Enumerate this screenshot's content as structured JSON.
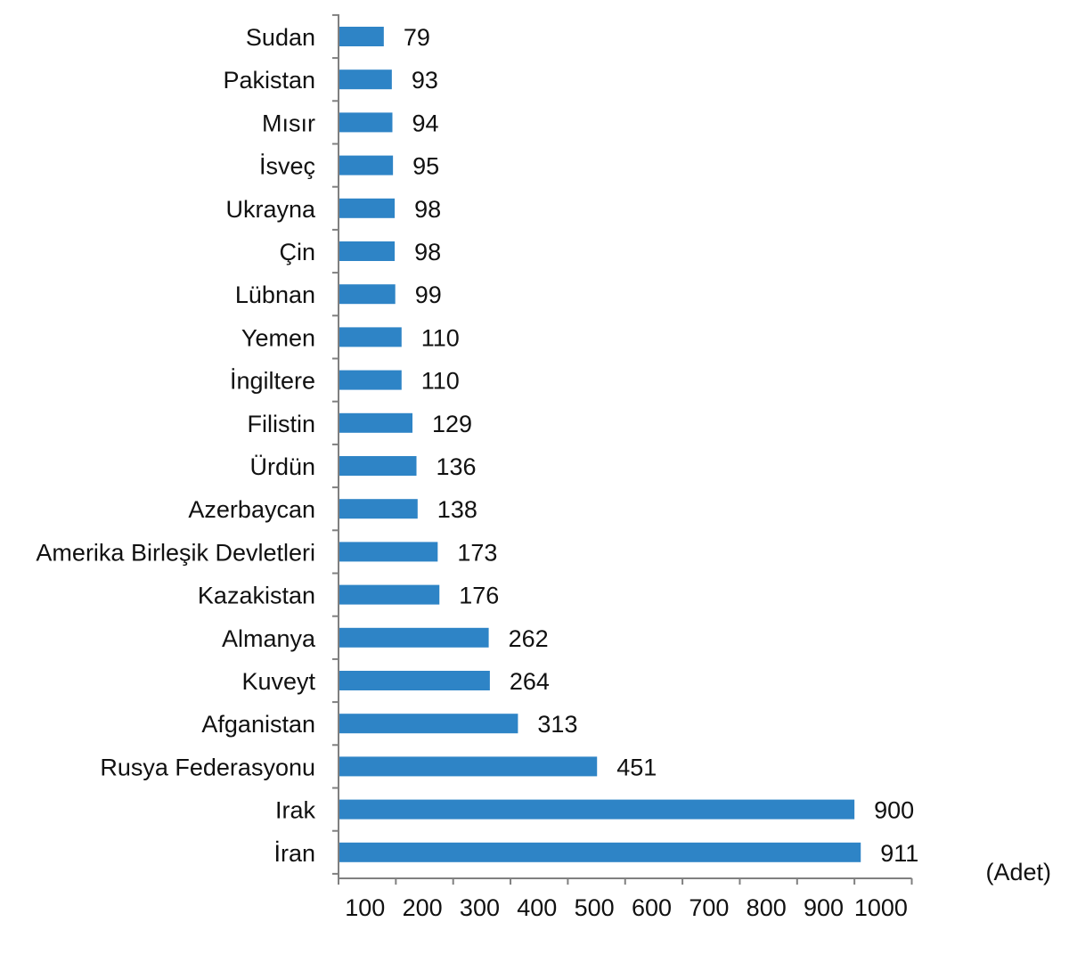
{
  "chart_data": {
    "type": "bar",
    "orientation": "horizontal",
    "categories": [
      "Sudan",
      "Pakistan",
      "Mısır",
      "İsveç",
      "Ukrayna",
      "Çin",
      "Lübnan",
      "Yemen",
      "İngiltere",
      "Filistin",
      "Ürdün",
      "Azerbaycan",
      "Amerika Birleşik Devletleri",
      "Kazakistan",
      "Almanya",
      "Kuveyt",
      "Afganistan",
      "Rusya Federasyonu",
      "Irak",
      "İran"
    ],
    "values": [
      79,
      93,
      94,
      95,
      98,
      98,
      99,
      110,
      110,
      129,
      136,
      138,
      173,
      176,
      262,
      264,
      313,
      451,
      900,
      911
    ],
    "value_labels": [
      "79",
      "93",
      "94",
      "95",
      "98",
      "98",
      "99",
      "110",
      "110",
      "129",
      "136",
      "138",
      "173",
      "176",
      "262",
      "264",
      "313",
      "451",
      "900",
      "911"
    ],
    "x_ticks": [
      "100",
      "200",
      "300",
      "400",
      "500",
      "600",
      "700",
      "800",
      "900",
      "1000"
    ],
    "x_tick_values": [
      100,
      200,
      300,
      400,
      500,
      600,
      700,
      800,
      900,
      1000
    ],
    "xlim": [
      0,
      1000
    ],
    "unit_label": "(Adet)",
    "bar_color": "#2e84c6",
    "grid": false,
    "legend": "none"
  }
}
